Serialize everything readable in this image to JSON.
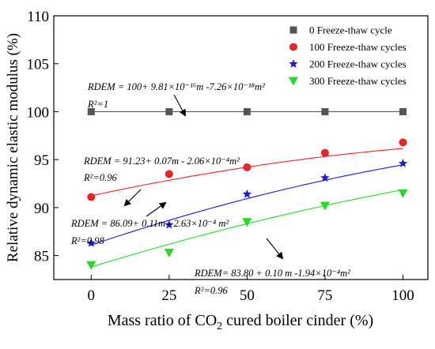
{
  "chart_data": {
    "type": "scatter",
    "xlabel": "Mass ratio of CO₂ cured boiler cinder (%)",
    "ylabel": "Relative dynamic elastic modulus (%)",
    "x_ticks": [
      0,
      25,
      50,
      75,
      100
    ],
    "y_ticks": [
      85,
      90,
      95,
      100,
      105,
      110
    ],
    "xlim": [
      -12,
      108
    ],
    "ylim": [
      82.5,
      110
    ],
    "legend_position": "top-right",
    "series": [
      {
        "name": "0 Freeze-thaw cycle",
        "marker": "square",
        "color": "#555555",
        "x": [
          0,
          25,
          50,
          75,
          100
        ],
        "values": [
          100,
          100,
          100,
          100,
          100
        ],
        "fit": {
          "a": 100,
          "b": 0,
          "c": 0
        }
      },
      {
        "name": "100 Freeze-thaw cycles",
        "marker": "circle",
        "color": "#ee2222",
        "x": [
          0,
          25,
          50,
          75,
          100
        ],
        "values": [
          91.1,
          93.5,
          94.2,
          95.7,
          96.8
        ],
        "fit": {
          "a": 91.23,
          "b": 0.07,
          "c": -0.000206
        }
      },
      {
        "name": "200 Freeze-thaw cycles",
        "marker": "star",
        "color": "#1a1adc",
        "x": [
          0,
          25,
          50,
          75,
          100
        ],
        "values": [
          86.3,
          88.2,
          91.4,
          93.1,
          94.6
        ],
        "fit": {
          "a": 86.09,
          "b": 0.11,
          "c": -0.000263
        }
      },
      {
        "name": "300 Freeze-thaw cycles",
        "marker": "triangle-down",
        "color": "#22dd22",
        "x": [
          0,
          25,
          50,
          75,
          100
        ],
        "values": [
          84.0,
          85.3,
          88.5,
          90.2,
          91.5
        ],
        "fit": {
          "a": 83.8,
          "b": 0.1,
          "c": -0.000194
        }
      }
    ],
    "annotations": [
      {
        "equation": "RDEM = 100+ 9.81×10⁻¹⁶m -7.26×10⁻¹⁸m²",
        "r2": "R²=1"
      },
      {
        "equation": "RDEM = 91.23+ 0.07m - 2.06×10⁻⁴m²",
        "r2": "R²=0.96"
      },
      {
        "equation": "RDEM = 86.09+ 0.11m - 2.63×10⁻⁴ m²",
        "r2": "R²=0.98"
      },
      {
        "equation": "RDEM= 83.80 + 0.10 m -1.94×10⁻⁴m²",
        "r2": "R²=0.96"
      }
    ]
  }
}
